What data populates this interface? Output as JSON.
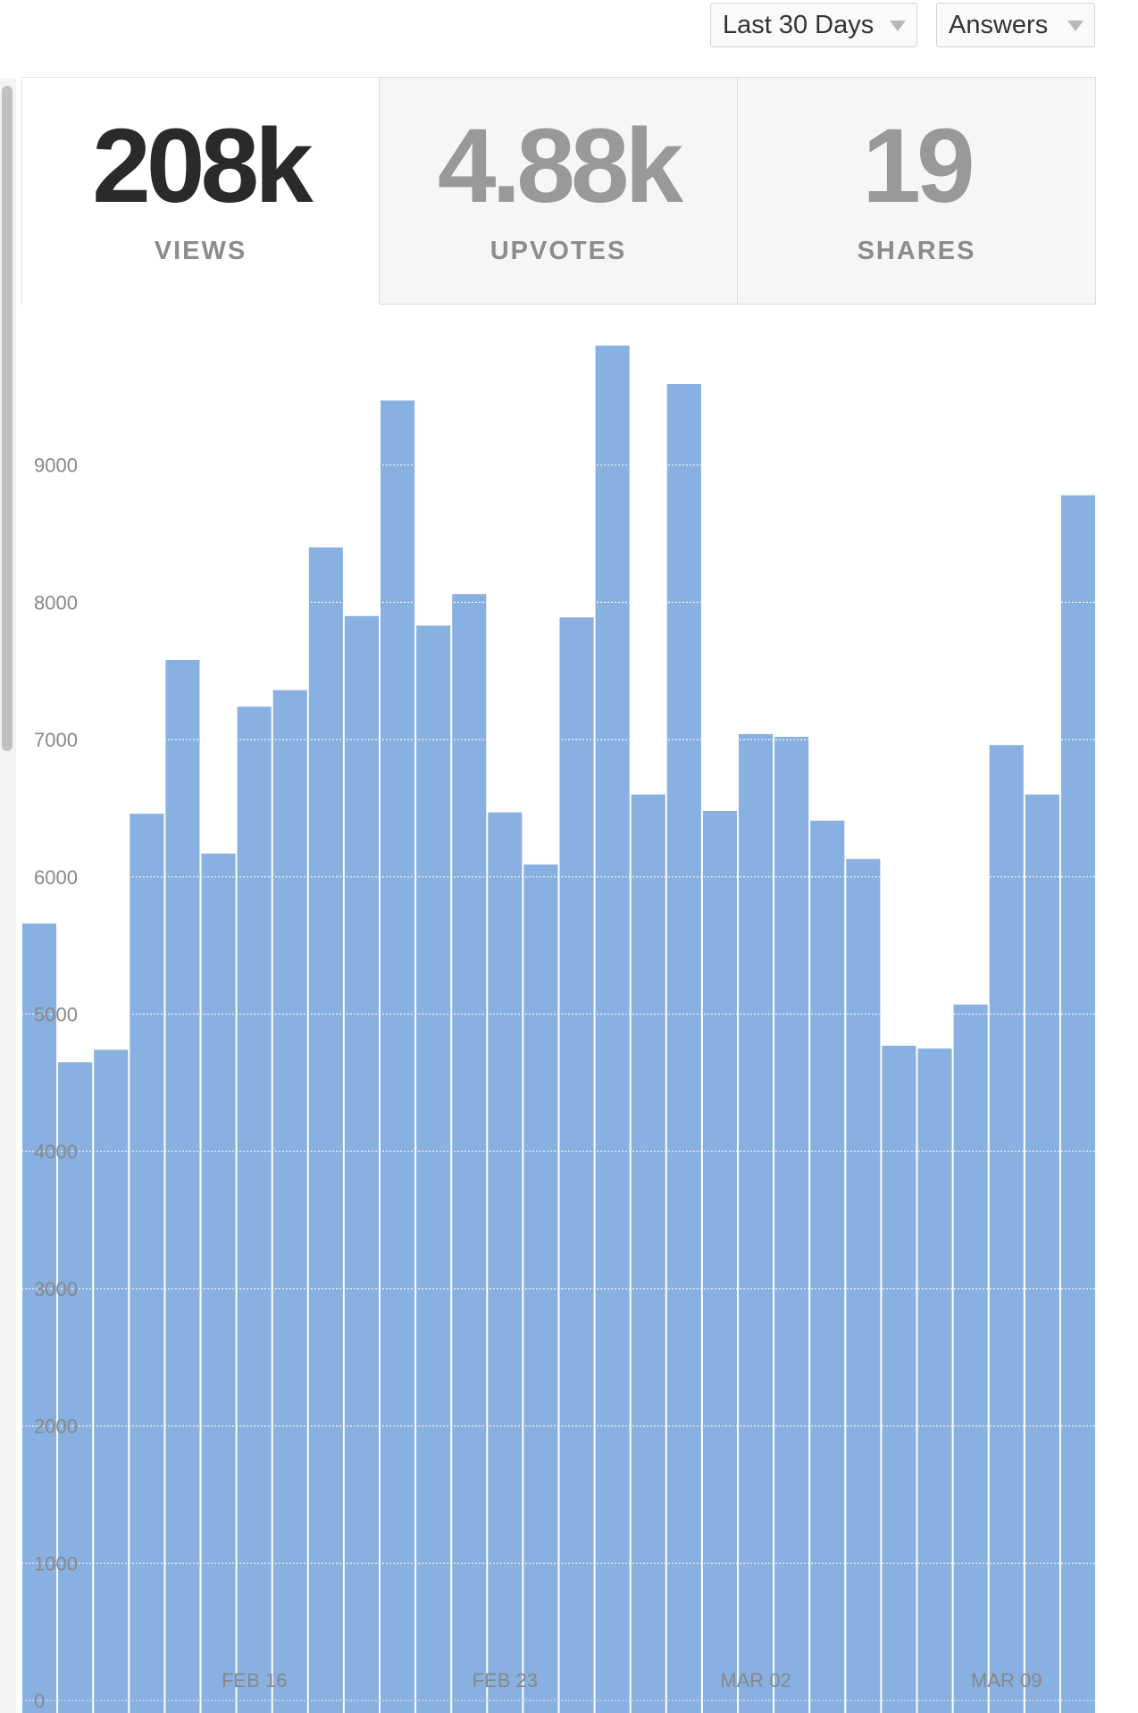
{
  "filters": {
    "range_label": "Last 30 Days",
    "type_label": "Answers"
  },
  "stats": {
    "views": {
      "value": "208k",
      "label": "VIEWS"
    },
    "upvotes": {
      "value": "4.88k",
      "label": "UPVOTES"
    },
    "shares": {
      "value": "19",
      "label": "SHARES"
    }
  },
  "colors": {
    "bar": "#88b1e1",
    "grid": "#e4e4e4",
    "tick_text": "#888888"
  },
  "chart_data": {
    "type": "bar",
    "title": "",
    "xlabel": "",
    "ylabel": "",
    "grid": true,
    "ylim": [
      0,
      10000
    ],
    "y_ticks": [
      0,
      1000,
      2000,
      3000,
      4000,
      5000,
      6000,
      7000,
      8000,
      9000
    ],
    "x_tick_labels": [
      {
        "label": "FEB 16",
        "index": 6
      },
      {
        "label": "FEB 23",
        "index": 13
      },
      {
        "label": "MAR 02",
        "index": 20
      },
      {
        "label": "MAR 09",
        "index": 27
      }
    ],
    "values": [
      5660,
      4650,
      4740,
      6460,
      7580,
      6170,
      7240,
      7360,
      8400,
      7900,
      9470,
      7830,
      8060,
      6470,
      6090,
      7890,
      9870,
      6600,
      9590,
      6480,
      7040,
      7020,
      6410,
      6130,
      4770,
      4750,
      5070,
      6960,
      6600,
      8780
    ]
  }
}
